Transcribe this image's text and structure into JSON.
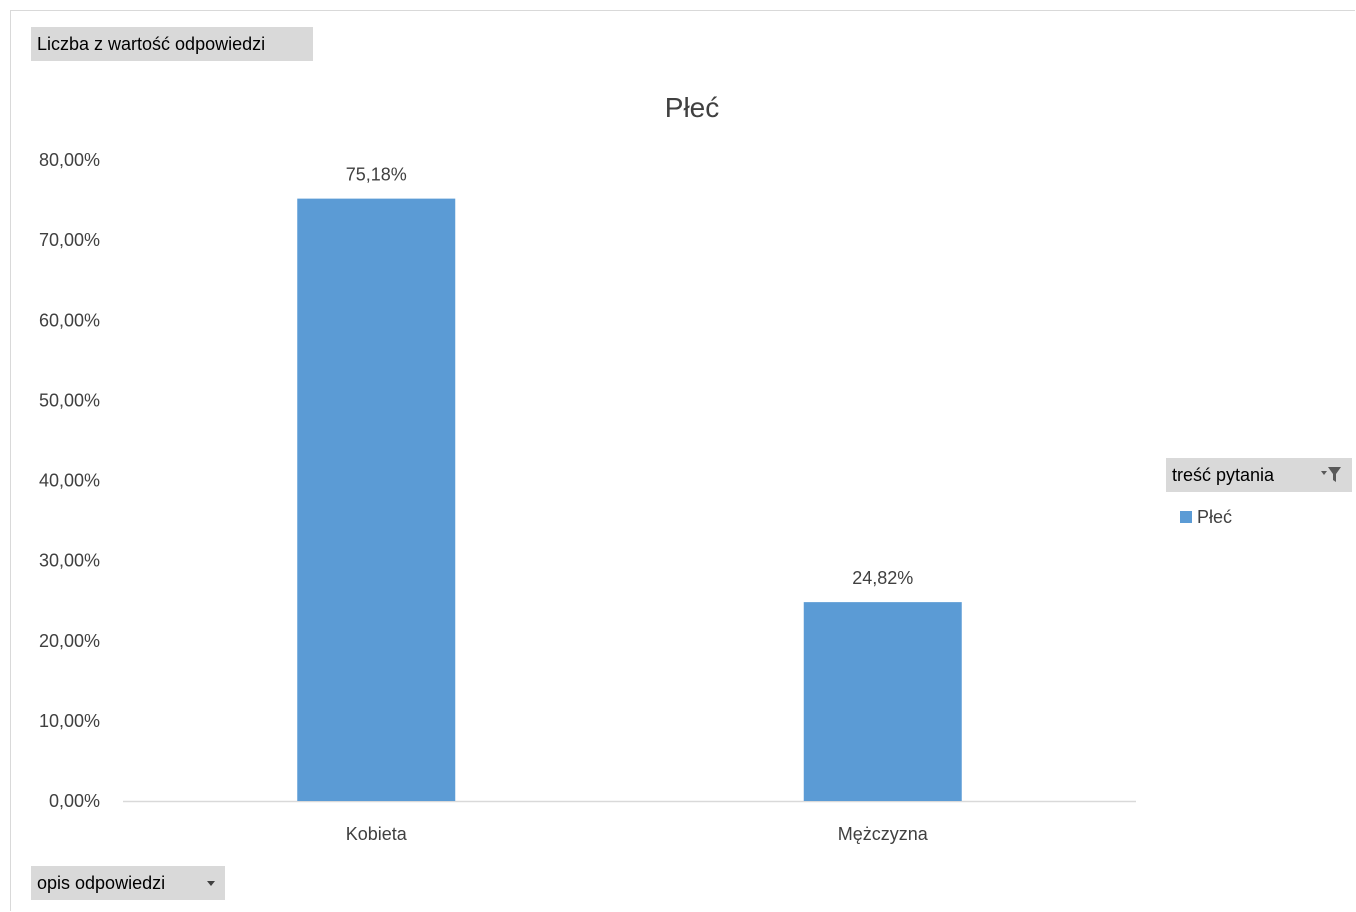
{
  "field_buttons": {
    "values": "Liczba z wartość odpowiedzi",
    "axis": "opis odpowiedzi",
    "legend": "treść pytania"
  },
  "icons": {
    "axis_dropdown": "chevron-down-icon",
    "legend_filter": "filter-icon"
  },
  "colors": {
    "series": "#5b9bd5",
    "text": "#404040",
    "axis_line": "#d9d9d9",
    "field_button_bg": "#d9d9d9"
  },
  "chart_data": {
    "type": "bar",
    "title": "Płeć",
    "categories": [
      "Kobieta",
      "Mężczyzna"
    ],
    "series": [
      {
        "name": "Płeć",
        "values": [
          75.18,
          24.82
        ]
      }
    ],
    "data_labels": [
      "75,18%",
      "24,82%"
    ],
    "y_ticks": [
      {
        "value": 0,
        "label": "0,00%"
      },
      {
        "value": 10,
        "label": "10,00%"
      },
      {
        "value": 20,
        "label": "20,00%"
      },
      {
        "value": 30,
        "label": "30,00%"
      },
      {
        "value": 40,
        "label": "40,00%"
      },
      {
        "value": 50,
        "label": "50,00%"
      },
      {
        "value": 60,
        "label": "60,00%"
      },
      {
        "value": 70,
        "label": "70,00%"
      },
      {
        "value": 80,
        "label": "80,00%"
      }
    ],
    "ylim": [
      0,
      80
    ],
    "gridlines": false,
    "legend_position": "right"
  }
}
